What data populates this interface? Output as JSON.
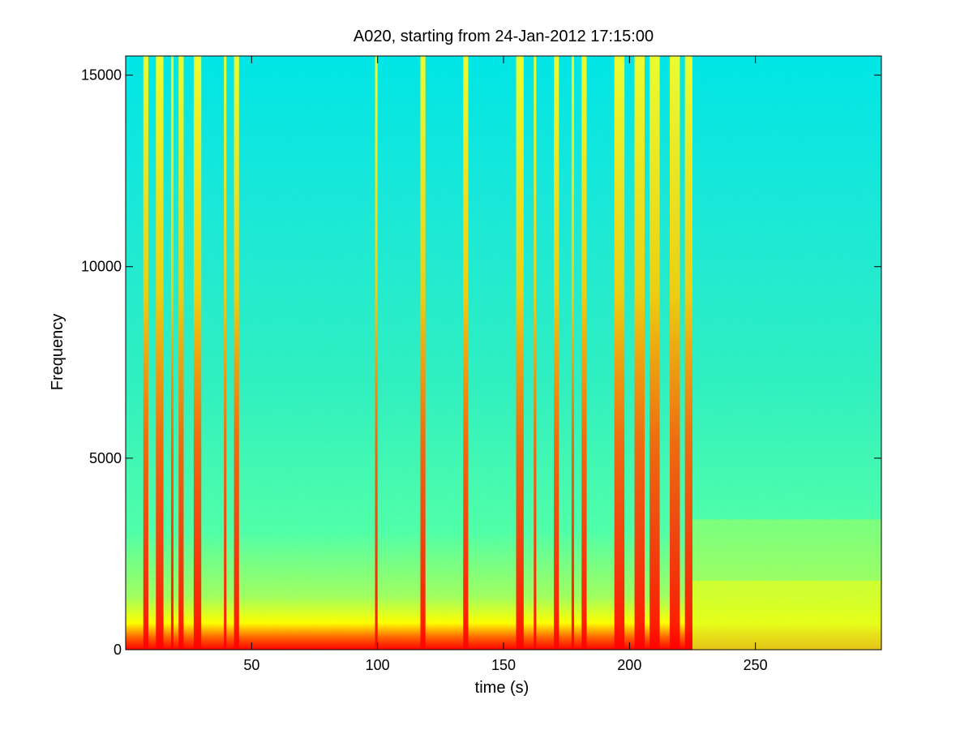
{
  "chart_data": {
    "type": "heatmap",
    "title": "A020, starting from 24-Jan-2012 17:15:00",
    "xlabel": "time (s)",
    "ylabel": "Frequency",
    "xlim": [
      0,
      300
    ],
    "ylim": [
      0,
      15500
    ],
    "x_ticks": [
      50,
      100,
      150,
      200,
      250
    ],
    "y_ticks": [
      0,
      5000,
      10000,
      15000
    ],
    "grid": false,
    "colormap": [
      "#00ffff",
      "#40ffbf",
      "#80ff80",
      "#ffff00",
      "#ff8000",
      "#ff0000"
    ],
    "background_color": "#00e6e6",
    "broadband_events_s": [
      [
        7,
        9
      ],
      [
        12,
        15
      ],
      [
        18,
        19
      ],
      [
        21,
        23
      ],
      [
        27,
        30
      ],
      [
        39,
        40
      ],
      [
        43,
        45
      ],
      [
        99,
        100
      ],
      [
        117,
        119
      ],
      [
        134,
        136
      ],
      [
        155,
        158
      ],
      [
        162,
        163
      ],
      [
        170,
        172
      ],
      [
        177,
        178
      ],
      [
        181,
        183
      ],
      [
        194,
        198
      ],
      [
        202,
        206
      ],
      [
        208,
        212
      ],
      [
        216,
        220
      ],
      [
        222,
        225
      ]
    ],
    "low_band_change_time_s": 225,
    "low_band_top_after_change_hz": 3400
  }
}
